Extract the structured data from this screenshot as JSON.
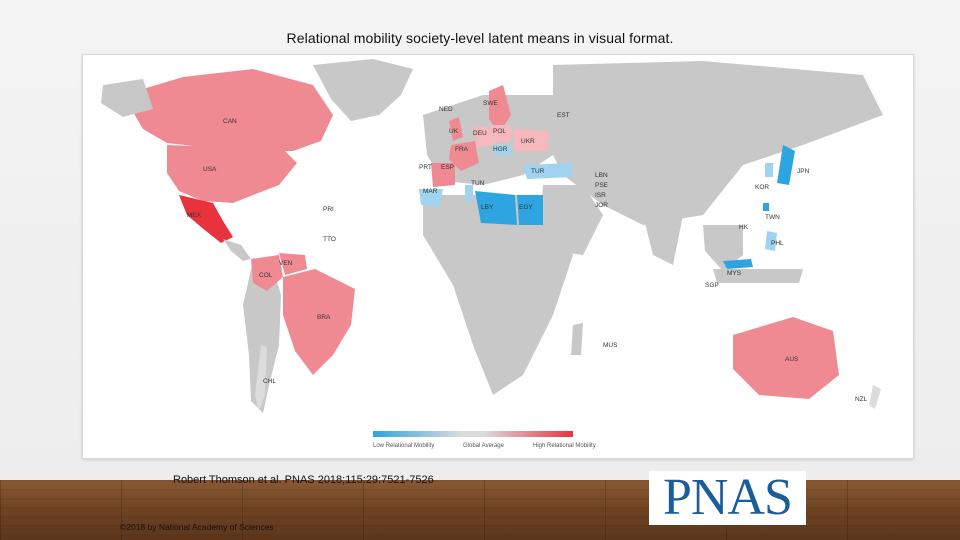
{
  "slide": {
    "title": "Relational mobility society-level latent means in visual format.",
    "citation": "Robert Thomson et al. PNAS 2018;115:29:7521-7526",
    "copyright": "©2018 by National Academy of Sciences",
    "logo_text": "PNAS"
  },
  "map": {
    "colors": {
      "high": "#e8333f",
      "medium_high": "#f08a92",
      "light_high": "#f6b8bd",
      "average": "#dcdcdc",
      "light_low": "#9fd3ef",
      "low": "#2ea4e0",
      "no_data": "#c8c8c8",
      "ocean": "#ffffff"
    },
    "country_labels": [
      {
        "code": "CAN",
        "level": "medium_high"
      },
      {
        "code": "USA",
        "level": "medium_high"
      },
      {
        "code": "MEX",
        "level": "high"
      },
      {
        "code": "PRI",
        "level": "high"
      },
      {
        "code": "TTO",
        "level": "medium_high"
      },
      {
        "code": "VEN",
        "level": "medium_high"
      },
      {
        "code": "COL",
        "level": "medium_high"
      },
      {
        "code": "BRA",
        "level": "medium_high"
      },
      {
        "code": "CHL",
        "level": "average"
      },
      {
        "code": "NED",
        "level": "medium_high"
      },
      {
        "code": "SWE",
        "level": "medium_high"
      },
      {
        "code": "EST",
        "level": "light_low"
      },
      {
        "code": "UK",
        "level": "medium_high"
      },
      {
        "code": "DEU",
        "level": "light_high"
      },
      {
        "code": "POL",
        "level": "light_high"
      },
      {
        "code": "FRA",
        "level": "medium_high"
      },
      {
        "code": "HGR",
        "level": "light_low"
      },
      {
        "code": "UKR",
        "level": "light_high"
      },
      {
        "code": "PRT",
        "level": "medium_high"
      },
      {
        "code": "ESP",
        "level": "medium_high"
      },
      {
        "code": "MAR",
        "level": "light_low"
      },
      {
        "code": "TUN",
        "level": "light_low"
      },
      {
        "code": "TUR",
        "level": "light_low"
      },
      {
        "code": "LBY",
        "level": "low"
      },
      {
        "code": "EGY",
        "level": "low"
      },
      {
        "code": "LBN",
        "level": "light_low"
      },
      {
        "code": "PSE",
        "level": "light_low"
      },
      {
        "code": "ISR",
        "level": "light_low"
      },
      {
        "code": "JOR",
        "level": "low"
      },
      {
        "code": "JPN",
        "level": "low"
      },
      {
        "code": "KOR",
        "level": "light_low"
      },
      {
        "code": "TWN",
        "level": "low"
      },
      {
        "code": "HK",
        "level": "low"
      },
      {
        "code": "PHL",
        "level": "light_low"
      },
      {
        "code": "MYS",
        "level": "low"
      },
      {
        "code": "SGP",
        "level": "low"
      },
      {
        "code": "MUS",
        "level": "light_high"
      },
      {
        "code": "AUS",
        "level": "medium_high"
      },
      {
        "code": "NZL",
        "level": "average"
      }
    ],
    "legend": {
      "low_label": "Low Relational Mobility",
      "mid_label": "Global Average",
      "high_label": "High Relational Mobility"
    }
  }
}
